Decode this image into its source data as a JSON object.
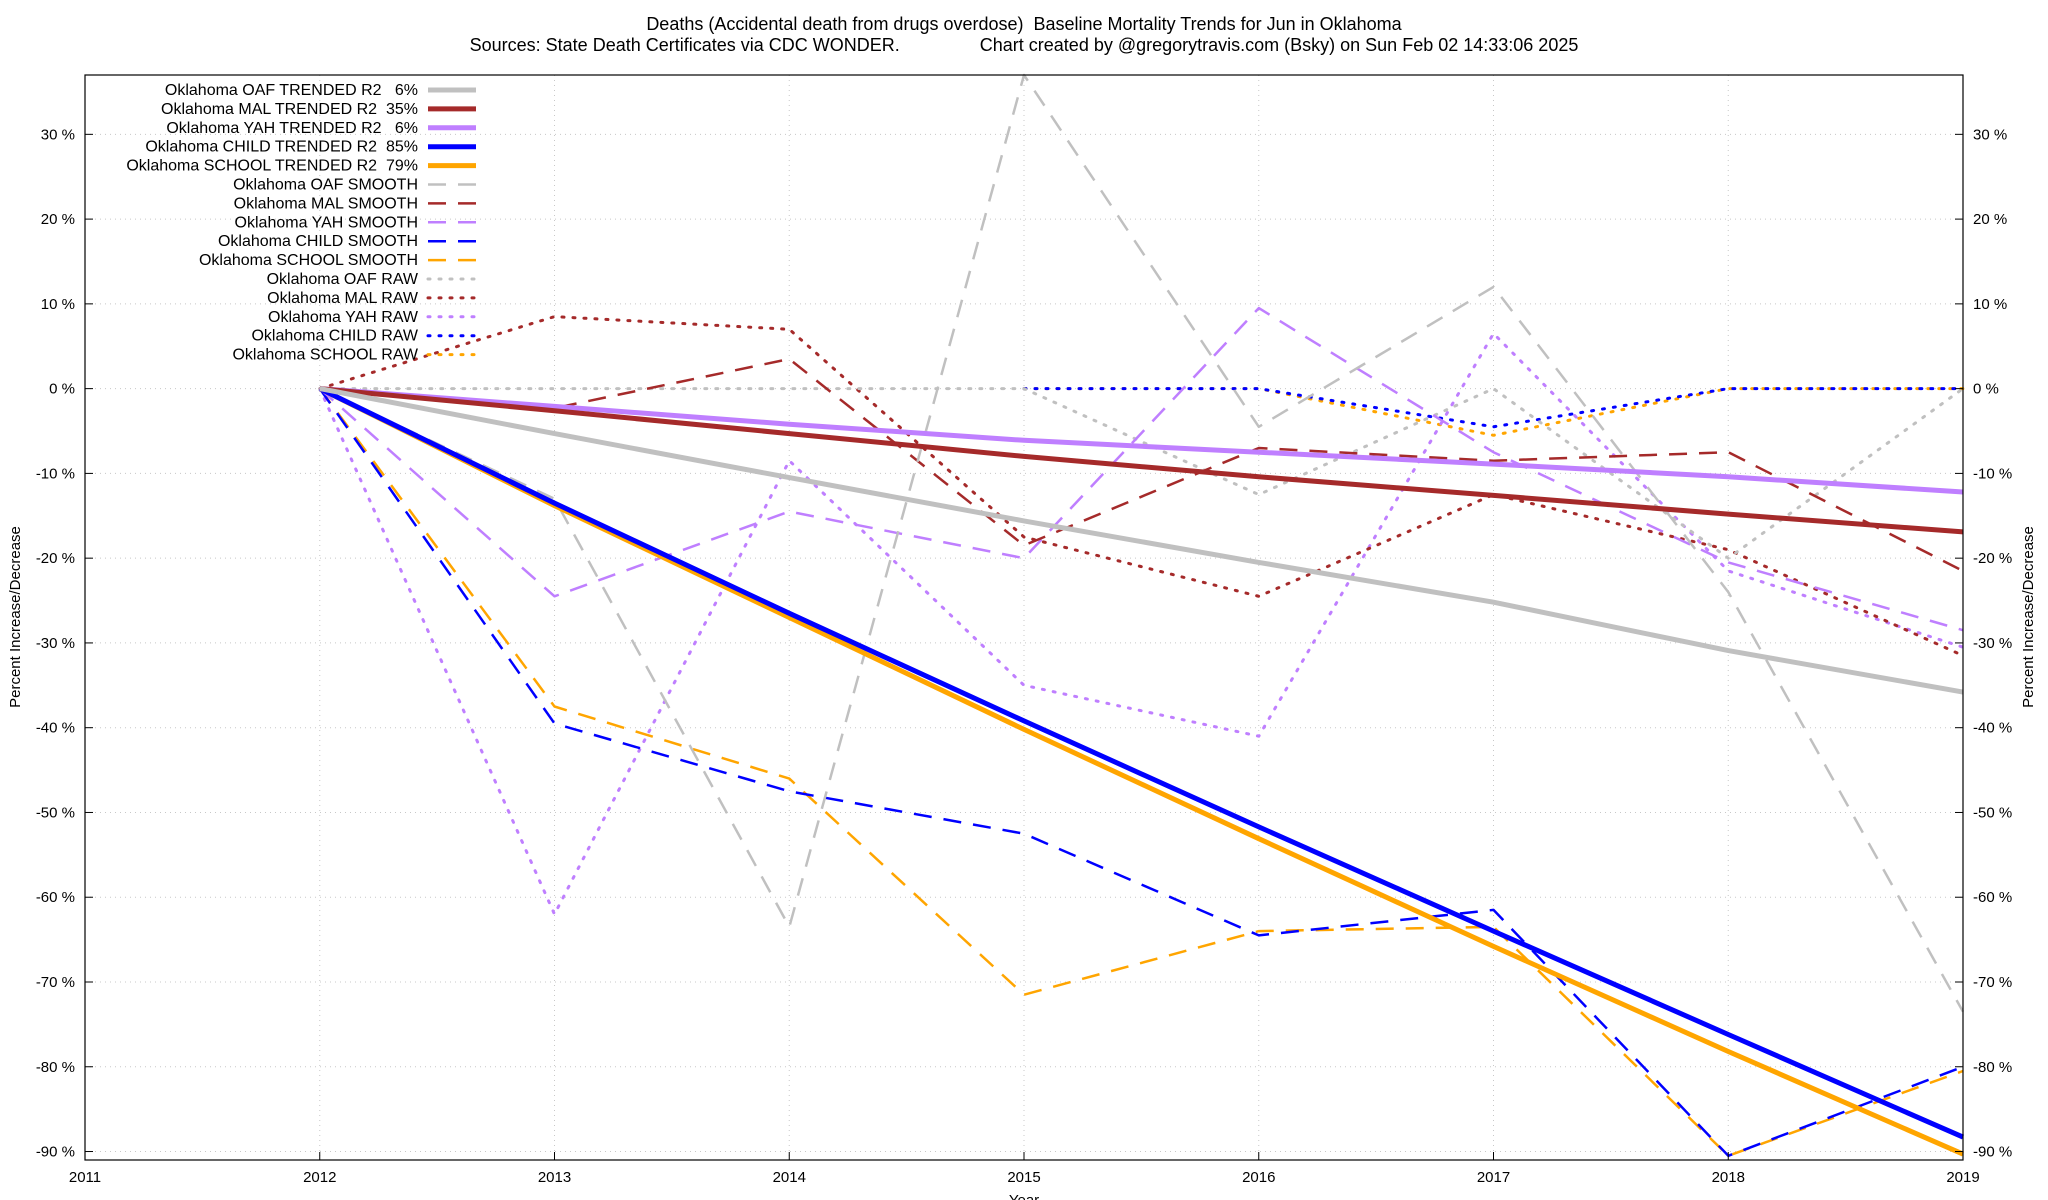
{
  "chart_data": {
    "type": "line",
    "title": "Deaths (Accidental death from drugs overdose)  Baseline Mortality Trends for Jun in Oklahoma",
    "subtitle": "Sources: State Death Certificates via CDC WONDER.                Chart created by @gregorytravis.com (Bsky) on Sun Feb 02 14:33:06 2025",
    "xlabel": "Year",
    "ylabel": "Percent Increase/Decrease",
    "ylabel_right": "Percent Increase/Decrease",
    "xlim": [
      2011,
      2019
    ],
    "ylim": [
      -91,
      37
    ],
    "x_ticks": [
      "2011",
      "2012",
      "2013",
      "2014",
      "2015",
      "2016",
      "2017",
      "2018",
      "2019"
    ],
    "y_ticks": [
      "30 %",
      "20 %",
      "10 %",
      "0 %",
      "-10 %",
      "-20 %",
      "-30 %",
      "-40 %",
      "-50 %",
      "-60 %",
      "-70 %",
      "-80 %",
      "-90 %"
    ],
    "y_tick_values": [
      30,
      20,
      10,
      0,
      -10,
      -20,
      -30,
      -40,
      -50,
      -60,
      -70,
      -80,
      -90
    ],
    "grid": true,
    "legend_position": "top-left",
    "series": [
      {
        "name": "Oklahoma OAF TRENDED R2   6%",
        "style": "solid",
        "color": "#c0c0c0",
        "width": 5,
        "x": [
          2012,
          2013,
          2014,
          2015,
          2016,
          2017,
          2018,
          2019
        ],
        "y": [
          0,
          -5.3,
          -10.5,
          -15.6,
          -20.5,
          -25.2,
          -30.9,
          -35.8
        ]
      },
      {
        "name": "Oklahoma MAL TRENDED R2  35%",
        "style": "solid",
        "color": "#a52a2a",
        "width": 5,
        "x": [
          2012,
          2013,
          2014,
          2015,
          2016,
          2017,
          2018,
          2019
        ],
        "y": [
          0,
          -2.6,
          -5.3,
          -8.0,
          -10.4,
          -12.6,
          -14.8,
          -16.9
        ]
      },
      {
        "name": "Oklahoma YAH TRENDED R2   6%",
        "style": "solid",
        "color": "#bf7fff",
        "width": 5,
        "x": [
          2012,
          2013,
          2014,
          2015,
          2016,
          2017,
          2018,
          2019
        ],
        "y": [
          0,
          -2.1,
          -4.2,
          -6.1,
          -7.5,
          -8.9,
          -10.4,
          -12.2
        ]
      },
      {
        "name": "Oklahoma CHILD TRENDED R2  85%",
        "style": "solid",
        "color": "#0000ff",
        "width": 5,
        "x": [
          2012,
          2013,
          2014,
          2015,
          2016,
          2017,
          2018,
          2019
        ],
        "y": [
          0,
          -13.5,
          -26.5,
          -39.2,
          -51.7,
          -64.0,
          -76.2,
          -88.3
        ]
      },
      {
        "name": "Oklahoma SCHOOL TRENDED R2  79%",
        "style": "solid",
        "color": "#ffa500",
        "width": 5,
        "x": [
          2012,
          2013,
          2014,
          2015,
          2016,
          2017,
          2018,
          2019
        ],
        "y": [
          0,
          -13.8,
          -27.0,
          -40.2,
          -53.1,
          -65.8,
          -78.2,
          -90.3
        ]
      },
      {
        "name": "Oklahoma OAF SMOOTH",
        "style": "dash",
        "color": "#c0c0c0",
        "width": 2.5,
        "x": [
          2012,
          2013,
          2014,
          2015,
          2016,
          2017,
          2018,
          2019
        ],
        "y": [
          0,
          -13,
          -63.5,
          37,
          -4.5,
          12,
          -24,
          -73.5
        ]
      },
      {
        "name": "Oklahoma MAL SMOOTH",
        "style": "dash",
        "color": "#a52a2a",
        "width": 2.5,
        "x": [
          2012,
          2013,
          2014,
          2015,
          2016,
          2017,
          2018,
          2019
        ],
        "y": [
          0,
          -2.3,
          3.5,
          -18.5,
          -7,
          -8.5,
          -7.5,
          -21.5
        ]
      },
      {
        "name": "Oklahoma YAH SMOOTH",
        "style": "dash",
        "color": "#bf7fff",
        "width": 2.5,
        "x": [
          2012,
          2013,
          2014,
          2015,
          2016,
          2017,
          2018,
          2019
        ],
        "y": [
          0,
          -24.5,
          -14.5,
          -20,
          9.5,
          -7.5,
          -20.5,
          -28.5
        ]
      },
      {
        "name": "Oklahoma CHILD SMOOTH",
        "style": "dash",
        "color": "#0000ff",
        "width": 2.5,
        "x": [
          2012,
          2013,
          2014,
          2015,
          2016,
          2017,
          2018,
          2019
        ],
        "y": [
          0,
          -39.5,
          -47.5,
          -52.5,
          -64.5,
          -61.5,
          -90.5,
          -80
        ]
      },
      {
        "name": "Oklahoma SCHOOL SMOOTH",
        "style": "dash",
        "color": "#ffa500",
        "width": 2.5,
        "x": [
          2012,
          2013,
          2014,
          2015,
          2016,
          2017,
          2018,
          2019
        ],
        "y": [
          0,
          -37.5,
          -46,
          -71.5,
          -64,
          -63.5,
          -90.5,
          -80.5
        ]
      },
      {
        "name": "Oklahoma OAF RAW",
        "style": "dot",
        "color": "#c0c0c0",
        "width": 3,
        "x": [
          2012,
          2013,
          2014,
          2015,
          2016,
          2017,
          2018,
          2019
        ],
        "y": [
          0,
          0,
          0,
          0,
          -12.5,
          0,
          -20,
          0
        ]
      },
      {
        "name": "Oklahoma MAL RAW",
        "style": "dot",
        "color": "#a52a2a",
        "width": 3,
        "x": [
          2012,
          2013,
          2014,
          2015,
          2016,
          2017,
          2018,
          2019
        ],
        "y": [
          0,
          8.5,
          7,
          -17.5,
          -24.5,
          -12.5,
          -19,
          -31.5
        ]
      },
      {
        "name": "Oklahoma YAH RAW",
        "style": "dot",
        "color": "#bf7fff",
        "width": 3,
        "x": [
          2012,
          2013,
          2014,
          2015,
          2016,
          2017,
          2018,
          2019
        ],
        "y": [
          0,
          -62,
          -8.5,
          -35,
          -41,
          6.5,
          -21.5,
          -30.5
        ]
      },
      {
        "name": "Oklahoma CHILD RAW",
        "style": "dot",
        "color": "#0000ff",
        "width": 3,
        "x": [
          2015,
          2016,
          2017,
          2018,
          2019
        ],
        "y": [
          0,
          0,
          -4.5,
          0,
          0
        ]
      },
      {
        "name": "Oklahoma SCHOOL RAW",
        "style": "dot",
        "color": "#ffa500",
        "width": 3,
        "x": [
          2015,
          2016,
          2017,
          2018,
          2019
        ],
        "y": [
          0,
          0,
          -5.5,
          0,
          0
        ]
      }
    ]
  }
}
